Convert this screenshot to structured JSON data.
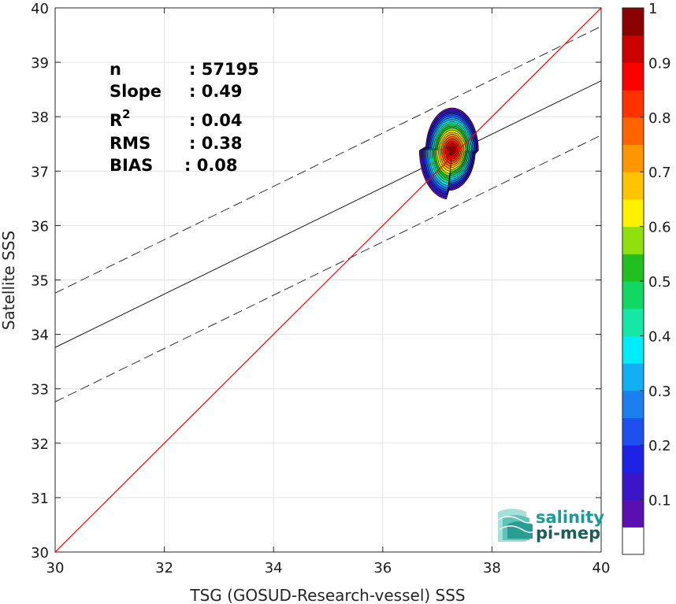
{
  "chart_data": {
    "type": "contour-scatter",
    "xlabel": "TSG (GOSUD-Research-vessel) SSS",
    "ylabel": "Satellite SSS",
    "xlim": [
      30,
      40
    ],
    "ylim": [
      30,
      40
    ],
    "xticks": [
      30,
      32,
      34,
      36,
      38,
      40
    ],
    "yticks": [
      30,
      31,
      32,
      33,
      34,
      35,
      36,
      37,
      38,
      39,
      40
    ],
    "grid": true,
    "stats": [
      {
        "label": "n",
        "value": ": 57195"
      },
      {
        "label": "Slope",
        "value": ": 0.49"
      },
      {
        "label": "R",
        "sup": "2",
        "value": ": 0.04"
      },
      {
        "label": "RMS",
        "value": ": 0.38"
      },
      {
        "label": "BIAS",
        "value": ": 0.08"
      }
    ],
    "one_to_one_line": {
      "color": "#ff0000",
      "from": [
        30,
        30
      ],
      "to": [
        40,
        40
      ]
    },
    "regression_line": {
      "slope": 0.49,
      "intercept": 19.06,
      "color": "#000000"
    },
    "regression_bounds": [
      {
        "slope": 0.49,
        "intercept": 20.06,
        "style": "dashed"
      },
      {
        "slope": 0.49,
        "intercept": 18.06,
        "style": "dashed"
      }
    ],
    "density_contours": {
      "center": [
        37.27,
        37.38
      ],
      "levels": [
        0.05,
        0.1,
        0.2,
        0.3,
        0.4,
        0.5,
        0.6,
        0.7,
        0.8,
        0.9,
        1.0
      ]
    },
    "colorbar": {
      "range": [
        0,
        1
      ],
      "ticks": [
        0.1,
        0.2,
        0.3,
        0.4,
        0.5,
        0.6,
        0.7,
        0.8,
        0.9,
        1
      ],
      "tick_labels": [
        "0.1",
        "0.2",
        "0.3",
        "0.4",
        "0.5",
        "0.6",
        "0.7",
        "0.8",
        "0.9",
        "1"
      ],
      "colors": [
        "#ffffff",
        "#5b0fb0",
        "#3a16c8",
        "#1e22e6",
        "#1d50ee",
        "#1c7fef",
        "#12b0f2",
        "#00ecf8",
        "#15e8a6",
        "#10d860",
        "#20c020",
        "#90e010",
        "#fff000",
        "#ffc400",
        "#ff9600",
        "#ff6400",
        "#ff3200",
        "#ff0000",
        "#cc0000",
        "#8b0000"
      ]
    }
  },
  "logo": {
    "line1": "salinity",
    "line2": "pi-mep"
  }
}
